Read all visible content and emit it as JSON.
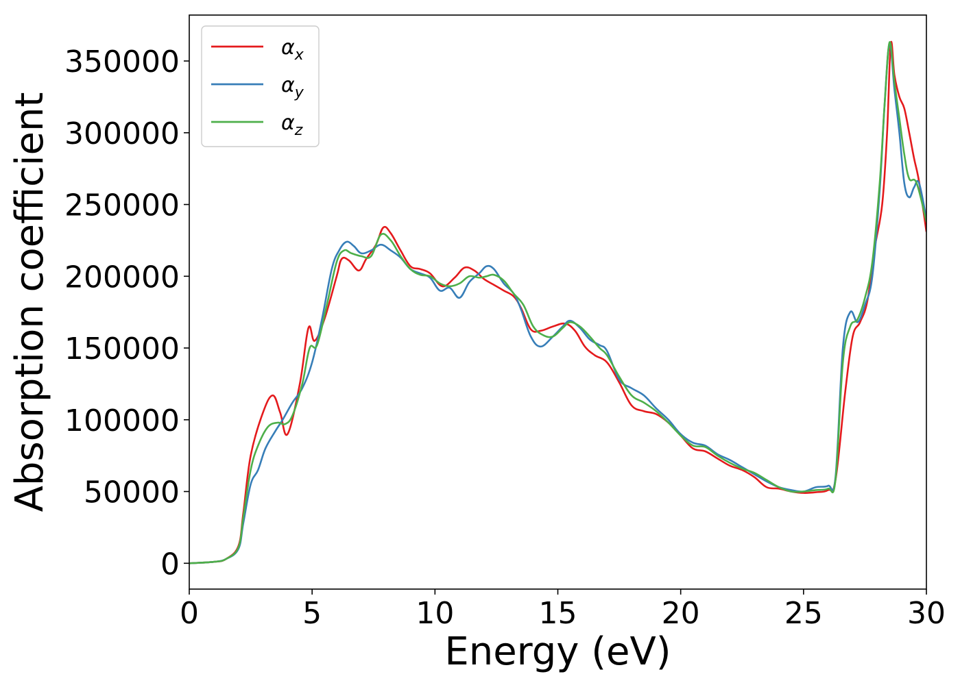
{
  "chart_data": {
    "type": "line",
    "xlabel": "Energy (eV)",
    "ylabel": "Absorption coefficient",
    "xlim": [
      0,
      30
    ],
    "ylim": [
      -18000,
      382000
    ],
    "xticks": [
      0,
      5,
      10,
      15,
      20,
      25,
      30
    ],
    "yticks": [
      0,
      50000,
      100000,
      150000,
      200000,
      250000,
      300000,
      350000
    ],
    "grid": false,
    "legend_position": "top-left",
    "series": [
      {
        "name": "α",
        "subscript": "x",
        "color": "#e41a1c",
        "x": [
          0,
          1,
          1.5,
          2,
          2.2,
          2.5,
          3,
          3.4,
          3.7,
          4,
          4.5,
          4.85,
          5.1,
          5.5,
          6,
          6.2,
          6.5,
          6.9,
          7.2,
          7.6,
          7.9,
          8.2,
          8.6,
          9,
          9.4,
          9.8,
          10.3,
          10.8,
          11.2,
          11.6,
          12,
          12.4,
          12.8,
          13.2,
          13.5,
          13.9,
          14.3,
          14.8,
          15.3,
          15.7,
          16.1,
          16.5,
          17,
          17.5,
          18,
          18.5,
          19,
          19.5,
          20,
          20.5,
          21,
          21.5,
          22,
          22.5,
          23,
          23.5,
          24,
          24.5,
          25,
          25.5,
          26,
          26.3,
          26.7,
          27,
          27.3,
          27.6,
          27.9,
          28.2,
          28.4,
          28.55,
          28.7,
          28.9,
          29.1,
          29.3,
          29.5,
          29.7,
          30
        ],
        "y": [
          0,
          1000,
          3000,
          12000,
          35000,
          75000,
          105000,
          117000,
          105000,
          90000,
          125000,
          164000,
          155000,
          170000,
          200000,
          212000,
          211000,
          204000,
          212000,
          222000,
          234000,
          230000,
          218000,
          207000,
          205000,
          202000,
          193000,
          199000,
          206000,
          204000,
          198000,
          194000,
          190000,
          186000,
          178000,
          163000,
          162000,
          165000,
          167000,
          162000,
          151000,
          145000,
          140000,
          126000,
          110000,
          106000,
          104000,
          98000,
          89000,
          80000,
          78000,
          73000,
          68000,
          65000,
          60000,
          53000,
          52000,
          50000,
          49000,
          49500,
          51000,
          58000,
          120000,
          158000,
          168000,
          183000,
          220000,
          250000,
          300000,
          362000,
          340000,
          325000,
          317000,
          300000,
          282000,
          266000,
          231000
        ]
      },
      {
        "name": "α",
        "subscript": "y",
        "color": "#377eb8",
        "x": [
          0,
          1,
          1.5,
          2,
          2.2,
          2.5,
          2.8,
          3.1,
          3.5,
          3.8,
          4.2,
          4.6,
          5,
          5.4,
          5.8,
          6.1,
          6.4,
          6.7,
          7,
          7.4,
          7.8,
          8.2,
          8.6,
          9,
          9.4,
          9.8,
          10.2,
          10.6,
          11,
          11.4,
          11.8,
          12.1,
          12.4,
          12.8,
          13.2,
          13.5,
          13.9,
          14.3,
          14.8,
          15.2,
          15.5,
          15.9,
          16.3,
          16.7,
          17,
          17.5,
          18,
          18.5,
          19,
          19.5,
          20,
          20.5,
          21,
          21.5,
          22,
          22.5,
          23,
          23.5,
          24,
          24.5,
          25,
          25.5,
          26,
          26.3,
          26.6,
          26.9,
          27.2,
          27.5,
          27.8,
          28.1,
          28.3,
          28.5,
          28.7,
          28.9,
          29.1,
          29.3,
          29.5,
          29.7,
          30
        ],
        "y": [
          0,
          1000,
          3000,
          10000,
          28000,
          55000,
          65000,
          80000,
          92000,
          100000,
          112000,
          122000,
          140000,
          170000,
          205000,
          218000,
          224000,
          221000,
          216000,
          218000,
          222000,
          218000,
          213000,
          205000,
          202000,
          199000,
          190000,
          192000,
          185000,
          196000,
          202000,
          207000,
          205000,
          195000,
          188000,
          177000,
          158000,
          151000,
          158000,
          165000,
          169000,
          164000,
          156000,
          152000,
          148000,
          128000,
          122000,
          117000,
          108000,
          100000,
          90000,
          84000,
          82000,
          76000,
          72000,
          67000,
          62000,
          57000,
          53000,
          51000,
          50000,
          53000,
          54000,
          60000,
          150000,
          175000,
          168000,
          180000,
          200000,
          260000,
          320000,
          362000,
          330000,
          300000,
          265000,
          255000,
          262000,
          265000,
          240000
        ]
      },
      {
        "name": "α",
        "subscript": "z",
        "color": "#4daf4a",
        "x": [
          0,
          1,
          1.5,
          2,
          2.2,
          2.5,
          2.8,
          3.2,
          3.6,
          3.9,
          4.2,
          4.6,
          4.9,
          5.2,
          5.6,
          6,
          6.3,
          6.6,
          7,
          7.4,
          7.8,
          8.2,
          8.6,
          9,
          9.4,
          9.8,
          10.2,
          10.6,
          11,
          11.4,
          11.8,
          12.1,
          12.4,
          12.8,
          13.2,
          13.6,
          14,
          14.4,
          14.8,
          15.2,
          15.5,
          15.9,
          16.3,
          16.7,
          17,
          17.5,
          18,
          18.5,
          19,
          19.5,
          20,
          20.5,
          21,
          21.5,
          22,
          22.5,
          23,
          23.5,
          24,
          24.5,
          25,
          25.5,
          26,
          26.3,
          26.6,
          26.9,
          27.2,
          27.5,
          27.8,
          28.1,
          28.3,
          28.5,
          28.7,
          28.9,
          29.1,
          29.3,
          29.6,
          30
        ],
        "y": [
          0,
          1000,
          3000,
          11000,
          32000,
          65000,
          82000,
          95000,
          98000,
          97000,
          103000,
          125000,
          150000,
          152000,
          180000,
          210000,
          218000,
          216000,
          214000,
          214000,
          229000,
          225000,
          214000,
          205000,
          201000,
          200000,
          195000,
          193000,
          195000,
          200000,
          199000,
          200000,
          201000,
          197000,
          188000,
          180000,
          165000,
          159000,
          158000,
          164000,
          168000,
          165000,
          158000,
          150000,
          145000,
          130000,
          117000,
          112000,
          106000,
          98000,
          89000,
          82000,
          81000,
          75000,
          70000,
          66000,
          63000,
          58000,
          53000,
          50000,
          50000,
          51000,
          52000,
          58000,
          140000,
          165000,
          170000,
          185000,
          210000,
          265000,
          320000,
          363000,
          335000,
          310000,
          285000,
          268000,
          265000,
          238000
        ]
      }
    ]
  }
}
